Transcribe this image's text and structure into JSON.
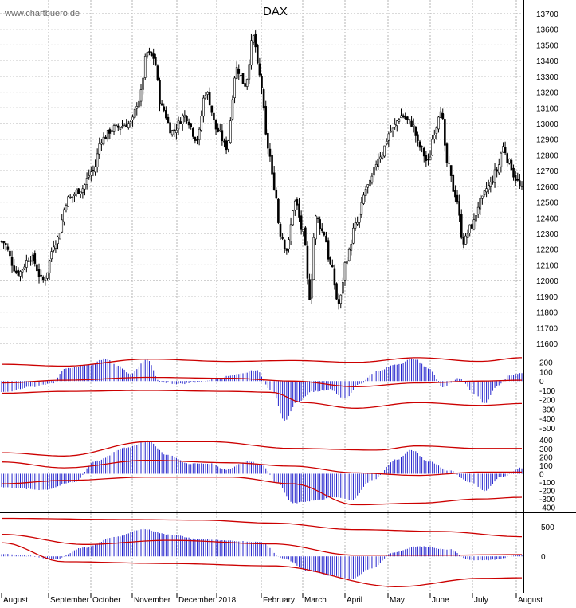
{
  "watermark": "www.chartbuero.de",
  "colors": {
    "candle": "#000000",
    "histogram": "#2222cc",
    "band": "#cc0000",
    "grid": "#b4b4b4",
    "divider": "#000000"
  },
  "chart_data": [
    {
      "type": "candlestick",
      "title": "DAX",
      "ylim": [
        11600,
        13700
      ],
      "yticks": [
        11600,
        11700,
        11800,
        11900,
        12000,
        12100,
        12200,
        12300,
        12400,
        12500,
        12600,
        12700,
        12800,
        12900,
        13000,
        13100,
        13200,
        13300,
        13400,
        13500,
        13600,
        13700
      ],
      "grid": true,
      "x_labels": [
        "August",
        "September",
        "October",
        "November",
        "December",
        "2018",
        "February",
        "March",
        "April",
        "May",
        "June",
        "July",
        "August"
      ],
      "close_keypoints": [
        {
          "i": 0,
          "v": 12250
        },
        {
          "i": 8,
          "v": 12050
        },
        {
          "i": 14,
          "v": 12150
        },
        {
          "i": 20,
          "v": 12000
        },
        {
          "i": 26,
          "v": 12250
        },
        {
          "i": 32,
          "v": 12520
        },
        {
          "i": 38,
          "v": 12580
        },
        {
          "i": 44,
          "v": 12700
        },
        {
          "i": 48,
          "v": 12900
        },
        {
          "i": 54,
          "v": 12970
        },
        {
          "i": 62,
          "v": 13000
        },
        {
          "i": 66,
          "v": 13150
        },
        {
          "i": 70,
          "v": 13450
        },
        {
          "i": 73,
          "v": 13420
        },
        {
          "i": 77,
          "v": 13100
        },
        {
          "i": 82,
          "v": 12950
        },
        {
          "i": 88,
          "v": 13050
        },
        {
          "i": 94,
          "v": 12900
        },
        {
          "i": 98,
          "v": 13200
        },
        {
          "i": 104,
          "v": 12950
        },
        {
          "i": 108,
          "v": 12850
        },
        {
          "i": 113,
          "v": 13350
        },
        {
          "i": 117,
          "v": 13250
        },
        {
          "i": 121,
          "v": 13550
        },
        {
          "i": 124,
          "v": 13300
        },
        {
          "i": 128,
          "v": 12850
        },
        {
          "i": 131,
          "v": 12600
        },
        {
          "i": 134,
          "v": 12300
        },
        {
          "i": 137,
          "v": 12200
        },
        {
          "i": 141,
          "v": 12500
        },
        {
          "i": 145,
          "v": 12300
        },
        {
          "i": 148,
          "v": 11900
        },
        {
          "i": 151,
          "v": 12400
        },
        {
          "i": 155,
          "v": 12300
        },
        {
          "i": 158,
          "v": 12100
        },
        {
          "i": 162,
          "v": 11850
        },
        {
          "i": 166,
          "v": 12150
        },
        {
          "i": 170,
          "v": 12350
        },
        {
          "i": 176,
          "v": 12600
        },
        {
          "i": 182,
          "v": 12800
        },
        {
          "i": 187,
          "v": 12950
        },
        {
          "i": 192,
          "v": 13050
        },
        {
          "i": 197,
          "v": 13000
        },
        {
          "i": 201,
          "v": 12850
        },
        {
          "i": 205,
          "v": 12750
        },
        {
          "i": 208,
          "v": 12950
        },
        {
          "i": 211,
          "v": 13100
        },
        {
          "i": 214,
          "v": 12750
        },
        {
          "i": 218,
          "v": 12550
        },
        {
          "i": 222,
          "v": 12250
        },
        {
          "i": 226,
          "v": 12350
        },
        {
          "i": 230,
          "v": 12500
        },
        {
          "i": 234,
          "v": 12600
        },
        {
          "i": 238,
          "v": 12700
        },
        {
          "i": 241,
          "v": 12850
        },
        {
          "i": 244,
          "v": 12750
        },
        {
          "i": 247,
          "v": 12650
        },
        {
          "i": 250,
          "v": 12580
        }
      ],
      "bar_count": 251
    },
    {
      "type": "histogram",
      "name": "indicator-1",
      "ylim": [
        -560,
        300
      ],
      "yticks": [
        -500,
        -400,
        -300,
        -200,
        -100,
        0,
        100,
        200
      ],
      "keypoints": [
        {
          "i": 0,
          "v": -120
        },
        {
          "i": 15,
          "v": -60
        },
        {
          "i": 25,
          "v": -20
        },
        {
          "i": 30,
          "v": 130
        },
        {
          "i": 42,
          "v": 170
        },
        {
          "i": 50,
          "v": 240
        },
        {
          "i": 56,
          "v": 160
        },
        {
          "i": 62,
          "v": 80
        },
        {
          "i": 70,
          "v": 230
        },
        {
          "i": 76,
          "v": -10
        },
        {
          "i": 85,
          "v": -30
        },
        {
          "i": 95,
          "v": -10
        },
        {
          "i": 105,
          "v": 40
        },
        {
          "i": 115,
          "v": 80
        },
        {
          "i": 122,
          "v": 120
        },
        {
          "i": 130,
          "v": -100
        },
        {
          "i": 136,
          "v": -430
        },
        {
          "i": 142,
          "v": -220
        },
        {
          "i": 150,
          "v": -110
        },
        {
          "i": 158,
          "v": -90
        },
        {
          "i": 165,
          "v": -190
        },
        {
          "i": 172,
          "v": -30
        },
        {
          "i": 180,
          "v": 100
        },
        {
          "i": 190,
          "v": 180
        },
        {
          "i": 198,
          "v": 240
        },
        {
          "i": 205,
          "v": 140
        },
        {
          "i": 212,
          "v": -60
        },
        {
          "i": 220,
          "v": 30
        },
        {
          "i": 228,
          "v": -150
        },
        {
          "i": 232,
          "v": -240
        },
        {
          "i": 238,
          "v": -60
        },
        {
          "i": 244,
          "v": 60
        },
        {
          "i": 250,
          "v": 90
        }
      ],
      "upper_band": [
        {
          "i": 0,
          "v": 180
        },
        {
          "i": 30,
          "v": 160
        },
        {
          "i": 70,
          "v": 235
        },
        {
          "i": 110,
          "v": 210
        },
        {
          "i": 140,
          "v": 220
        },
        {
          "i": 170,
          "v": 200
        },
        {
          "i": 200,
          "v": 250
        },
        {
          "i": 230,
          "v": 210
        },
        {
          "i": 250,
          "v": 250
        }
      ],
      "middle_band": [
        {
          "i": 0,
          "v": -20
        },
        {
          "i": 30,
          "v": 10
        },
        {
          "i": 70,
          "v": 40
        },
        {
          "i": 110,
          "v": 30
        },
        {
          "i": 140,
          "v": 0
        },
        {
          "i": 170,
          "v": -60
        },
        {
          "i": 200,
          "v": -20
        },
        {
          "i": 230,
          "v": 0
        },
        {
          "i": 250,
          "v": 10
        }
      ],
      "lower_band": [
        {
          "i": 0,
          "v": -130
        },
        {
          "i": 30,
          "v": -110
        },
        {
          "i": 70,
          "v": -100
        },
        {
          "i": 110,
          "v": -110
        },
        {
          "i": 130,
          "v": -120
        },
        {
          "i": 145,
          "v": -230
        },
        {
          "i": 170,
          "v": -290
        },
        {
          "i": 200,
          "v": -230
        },
        {
          "i": 230,
          "v": -260
        },
        {
          "i": 250,
          "v": -240
        }
      ]
    },
    {
      "type": "histogram",
      "name": "indicator-2",
      "ylim": [
        -450,
        440
      ],
      "yticks": [
        -400,
        -300,
        -200,
        -100,
        0,
        100,
        200,
        300,
        400
      ],
      "keypoints": [
        {
          "i": 0,
          "v": -160
        },
        {
          "i": 20,
          "v": -190
        },
        {
          "i": 35,
          "v": -100
        },
        {
          "i": 45,
          "v": 150
        },
        {
          "i": 60,
          "v": 310
        },
        {
          "i": 70,
          "v": 390
        },
        {
          "i": 80,
          "v": 220
        },
        {
          "i": 90,
          "v": 120
        },
        {
          "i": 100,
          "v": 120
        },
        {
          "i": 108,
          "v": 50
        },
        {
          "i": 118,
          "v": 150
        },
        {
          "i": 125,
          "v": 110
        },
        {
          "i": 132,
          "v": -100
        },
        {
          "i": 140,
          "v": -350
        },
        {
          "i": 150,
          "v": -320
        },
        {
          "i": 160,
          "v": -280
        },
        {
          "i": 168,
          "v": -310
        },
        {
          "i": 178,
          "v": -80
        },
        {
          "i": 190,
          "v": 170
        },
        {
          "i": 197,
          "v": 280
        },
        {
          "i": 205,
          "v": 150
        },
        {
          "i": 215,
          "v": 40
        },
        {
          "i": 225,
          "v": -100
        },
        {
          "i": 232,
          "v": -200
        },
        {
          "i": 240,
          "v": -40
        },
        {
          "i": 250,
          "v": 70
        }
      ],
      "upper_band": [
        {
          "i": 0,
          "v": 250
        },
        {
          "i": 30,
          "v": 210
        },
        {
          "i": 70,
          "v": 380
        },
        {
          "i": 100,
          "v": 380
        },
        {
          "i": 140,
          "v": 300
        },
        {
          "i": 180,
          "v": 280
        },
        {
          "i": 200,
          "v": 330
        },
        {
          "i": 230,
          "v": 300
        },
        {
          "i": 250,
          "v": 300
        }
      ],
      "middle_band": [
        {
          "i": 0,
          "v": 140
        },
        {
          "i": 30,
          "v": 70
        },
        {
          "i": 70,
          "v": 160
        },
        {
          "i": 110,
          "v": 130
        },
        {
          "i": 140,
          "v": 90
        },
        {
          "i": 170,
          "v": 10
        },
        {
          "i": 200,
          "v": -20
        },
        {
          "i": 230,
          "v": 20
        },
        {
          "i": 250,
          "v": 20
        }
      ],
      "lower_band": [
        {
          "i": 0,
          "v": -120
        },
        {
          "i": 30,
          "v": -80
        },
        {
          "i": 70,
          "v": -40
        },
        {
          "i": 110,
          "v": -40
        },
        {
          "i": 140,
          "v": -120
        },
        {
          "i": 170,
          "v": -370
        },
        {
          "i": 200,
          "v": -350
        },
        {
          "i": 230,
          "v": -300
        },
        {
          "i": 250,
          "v": -280
        }
      ]
    },
    {
      "type": "histogram",
      "name": "indicator-3",
      "ylim": [
        -600,
        700
      ],
      "yticks": [
        0,
        500
      ],
      "keypoints": [
        {
          "i": 0,
          "v": 40
        },
        {
          "i": 12,
          "v": 10
        },
        {
          "i": 25,
          "v": -50
        },
        {
          "i": 40,
          "v": 150
        },
        {
          "i": 55,
          "v": 330
        },
        {
          "i": 68,
          "v": 460
        },
        {
          "i": 80,
          "v": 370
        },
        {
          "i": 95,
          "v": 290
        },
        {
          "i": 110,
          "v": 260
        },
        {
          "i": 125,
          "v": 240
        },
        {
          "i": 135,
          "v": -30
        },
        {
          "i": 148,
          "v": -250
        },
        {
          "i": 160,
          "v": -330
        },
        {
          "i": 168,
          "v": -380
        },
        {
          "i": 178,
          "v": -200
        },
        {
          "i": 188,
          "v": 60
        },
        {
          "i": 200,
          "v": 170
        },
        {
          "i": 215,
          "v": 120
        },
        {
          "i": 225,
          "v": -60
        },
        {
          "i": 235,
          "v": -60
        },
        {
          "i": 250,
          "v": 30
        }
      ],
      "upper_band": [
        {
          "i": 0,
          "v": 640
        },
        {
          "i": 60,
          "v": 620
        },
        {
          "i": 95,
          "v": 610
        },
        {
          "i": 130,
          "v": 560
        },
        {
          "i": 170,
          "v": 450
        },
        {
          "i": 210,
          "v": 420
        },
        {
          "i": 250,
          "v": 330
        }
      ],
      "middle_band": [
        {
          "i": 0,
          "v": 370
        },
        {
          "i": 40,
          "v": 200
        },
        {
          "i": 80,
          "v": 270
        },
        {
          "i": 130,
          "v": 210
        },
        {
          "i": 170,
          "v": 20
        },
        {
          "i": 210,
          "v": 20
        },
        {
          "i": 250,
          "v": 30
        }
      ],
      "lower_band": [
        {
          "i": 0,
          "v": 230
        },
        {
          "i": 30,
          "v": -90
        },
        {
          "i": 80,
          "v": -120
        },
        {
          "i": 130,
          "v": -160
        },
        {
          "i": 190,
          "v": -510
        },
        {
          "i": 230,
          "v": -370
        },
        {
          "i": 250,
          "v": -360
        }
      ]
    }
  ]
}
